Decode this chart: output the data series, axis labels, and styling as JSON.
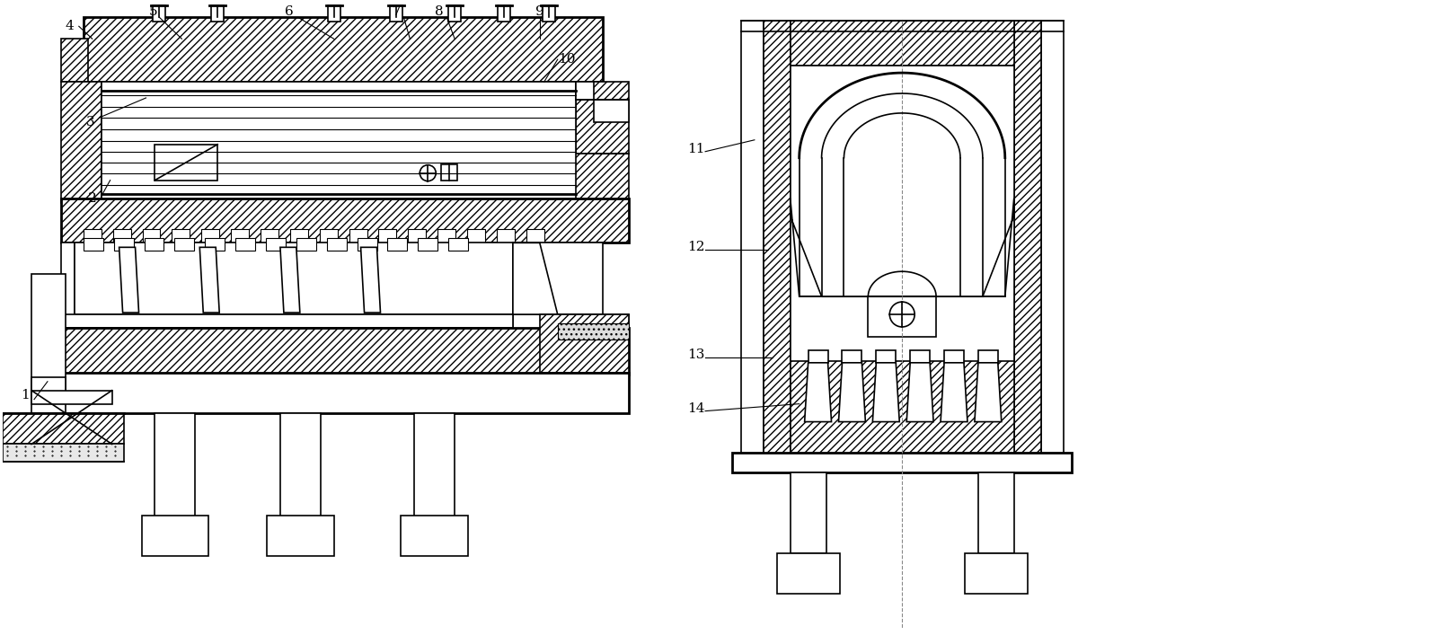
{
  "bg_color": "#ffffff",
  "line_color": "#000000",
  "fig_width": 16.13,
  "fig_height": 7.17,
  "dpi": 100
}
